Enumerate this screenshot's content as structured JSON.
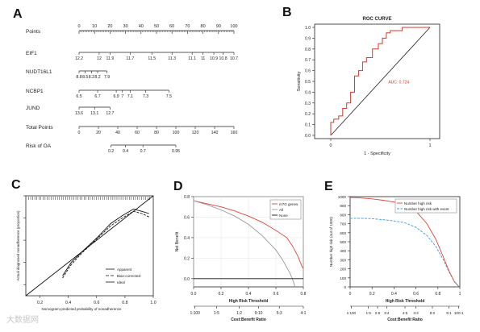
{
  "panels": {
    "A": "A",
    "B": "B",
    "C": "C",
    "D": "D",
    "E": "E"
  },
  "watermark": "大数据网",
  "colors": {
    "line": "#1a1a1a",
    "roc": "#d93a2b",
    "net_benefit_model": "#e0453a",
    "net_benefit_all": "#9a9a9a",
    "high_risk": "#e0453a",
    "high_risk_event": "#3a9ad9"
  },
  "chart_data": [
    {
      "type": "table",
      "panel": "A",
      "title": "",
      "rows": [
        {
          "label": "Points",
          "scale": [
            0,
            100
          ],
          "ticks": [
            {
              "v": 0,
              "t": "0"
            },
            {
              "v": 10,
              "t": "10"
            },
            {
              "v": 20,
              "t": "20"
            },
            {
              "v": 30,
              "t": "30"
            },
            {
              "v": 40,
              "t": "40"
            },
            {
              "v": 50,
              "t": "50"
            },
            {
              "v": 60,
              "t": "60"
            },
            {
              "v": 70,
              "t": "70"
            },
            {
              "v": 80,
              "t": "80"
            },
            {
              "v": 90,
              "t": "90"
            },
            {
              "v": 100,
              "t": "100"
            }
          ]
        },
        {
          "label": "EIF1",
          "scale": [
            0,
            100
          ],
          "ticks": [
            {
              "v": 0,
              "t": "12.2"
            },
            {
              "v": 13,
              "t": "12"
            },
            {
              "v": 20,
              "t": "11.9"
            },
            {
              "v": 33,
              "t": "11.7"
            },
            {
              "v": 47,
              "t": "11.5"
            },
            {
              "v": 60,
              "t": "11.3"
            },
            {
              "v": 73,
              "t": "11.1"
            },
            {
              "v": 80,
              "t": "11"
            },
            {
              "v": 87,
              "t": "10.9"
            },
            {
              "v": 93,
              "t": "10.8"
            },
            {
              "v": 100,
              "t": "10.7"
            }
          ]
        },
        {
          "label": "NUDT16L1",
          "scale": [
            0,
            100
          ],
          "ticks": [
            {
              "v": 0,
              "t": "8.8"
            },
            {
              "v": 4,
              "t": "8.5"
            },
            {
              "v": 8,
              "t": "8.2"
            },
            {
              "v": 12,
              "t": "8.2"
            },
            {
              "v": 18,
              "t": "7.9"
            }
          ]
        },
        {
          "label": "NCBP1",
          "scale": [
            0,
            100
          ],
          "ticks": [
            {
              "v": 0,
              "t": "6.5"
            },
            {
              "v": 12,
              "t": "6.7"
            },
            {
              "v": 24,
              "t": "6.9"
            },
            {
              "v": 28,
              "t": "7"
            },
            {
              "v": 33,
              "t": "7.1"
            },
            {
              "v": 43,
              "t": "7.3"
            },
            {
              "v": 58,
              "t": "7.5"
            }
          ]
        },
        {
          "label": "JUND",
          "scale": [
            0,
            100
          ],
          "ticks": [
            {
              "v": 0,
              "t": "13.6"
            },
            {
              "v": 10,
              "t": "13.1"
            },
            {
              "v": 20,
              "t": "12.7"
            }
          ]
        },
        {
          "label": "Total Points",
          "scale": [
            0,
            160
          ],
          "ticks": [
            {
              "v": 0,
              "t": "0"
            },
            {
              "v": 20,
              "t": "20"
            },
            {
              "v": 40,
              "t": "40"
            },
            {
              "v": 60,
              "t": "60"
            },
            {
              "v": 80,
              "t": "80"
            },
            {
              "v": 100,
              "t": "100"
            },
            {
              "v": 120,
              "t": "120"
            },
            {
              "v": 140,
              "t": "140"
            },
            {
              "v": 160,
              "t": "160"
            }
          ]
        },
        {
          "label": "Risk of OA",
          "scale": [
            0,
            160
          ],
          "ticks": [
            {
              "v": 33,
              "t": "0.2"
            },
            {
              "v": 48,
              "t": "0.4"
            },
            {
              "v": 66,
              "t": "0.7"
            },
            {
              "v": 100,
              "t": "0.95"
            }
          ]
        }
      ]
    },
    {
      "type": "line",
      "panel": "B",
      "title": "ROC CURVE",
      "xlabel": "1 - Specificity",
      "ylabel": "Sensitivity",
      "xlim": [
        0,
        1
      ],
      "ylim": [
        0,
        1
      ],
      "xticks": [
        {
          "v": 0,
          "t": "0"
        },
        {
          "v": 1,
          "t": "1"
        }
      ],
      "yticks": [
        {
          "v": 0,
          "t": "0.0"
        },
        {
          "v": 0.1,
          "t": "0.1"
        },
        {
          "v": 0.2,
          "t": "0.2"
        },
        {
          "v": 0.3,
          "t": "0.3"
        },
        {
          "v": 0.4,
          "t": "0.4"
        },
        {
          "v": 0.5,
          "t": "0.5"
        },
        {
          "v": 0.6,
          "t": "0.6"
        },
        {
          "v": 0.7,
          "t": "0.7"
        },
        {
          "v": 0.8,
          "t": "0.8"
        },
        {
          "v": 0.9,
          "t": "0.9"
        },
        {
          "v": 1.0,
          "t": "1.0"
        }
      ],
      "annotation": {
        "text": "AUC: 0.724",
        "x": 0.58,
        "y": 0.48
      },
      "reference": [
        [
          0,
          0
        ],
        [
          1,
          1
        ]
      ],
      "series": [
        {
          "values": [
            [
              0,
              0
            ],
            [
              0,
              0.12
            ],
            [
              0.03,
              0.12
            ],
            [
              0.03,
              0.15
            ],
            [
              0.08,
              0.15
            ],
            [
              0.08,
              0.18
            ],
            [
              0.12,
              0.18
            ],
            [
              0.12,
              0.25
            ],
            [
              0.16,
              0.25
            ],
            [
              0.16,
              0.3
            ],
            [
              0.2,
              0.3
            ],
            [
              0.2,
              0.4
            ],
            [
              0.24,
              0.4
            ],
            [
              0.24,
              0.55
            ],
            [
              0.28,
              0.55
            ],
            [
              0.28,
              0.6
            ],
            [
              0.32,
              0.6
            ],
            [
              0.32,
              0.68
            ],
            [
              0.36,
              0.68
            ],
            [
              0.36,
              0.72
            ],
            [
              0.42,
              0.72
            ],
            [
              0.42,
              0.8
            ],
            [
              0.48,
              0.8
            ],
            [
              0.48,
              0.85
            ],
            [
              0.52,
              0.85
            ],
            [
              0.52,
              0.9
            ],
            [
              0.56,
              0.9
            ],
            [
              0.56,
              0.95
            ],
            [
              0.6,
              0.95
            ],
            [
              0.6,
              0.97
            ],
            [
              0.72,
              0.97
            ],
            [
              0.72,
              1.0
            ],
            [
              1,
              1
            ]
          ]
        }
      ]
    },
    {
      "type": "line",
      "panel": "C",
      "title": "",
      "xlabel": "Nomogram-predicted probability of nonadherence",
      "ylabel": "Actual diagnosed nonadherence (proportion)",
      "xlim": [
        0.1,
        1.0
      ],
      "ylim": [
        0.1,
        1.0
      ],
      "xticks": [
        {
          "v": 0.2,
          "t": "0.2"
        },
        {
          "v": 0.4,
          "t": "0.4"
        },
        {
          "v": 0.6,
          "t": "0.6"
        },
        {
          "v": 0.8,
          "t": "0.8"
        },
        {
          "v": 1.0,
          "t": "1.0"
        }
      ],
      "yticks": [
        {
          "v": 0.2,
          "t": "0.2"
        },
        {
          "v": 0.4,
          "t": "0.4"
        },
        {
          "v": 0.6,
          "t": "0.6"
        },
        {
          "v": 0.8,
          "t": "0.8"
        },
        {
          "v": 1.0,
          "t": "1.0"
        }
      ],
      "legend": [
        {
          "name": "Apparent",
          "dash": "none"
        },
        {
          "name": "Bias-corrected",
          "dash": "4,2"
        },
        {
          "name": "Ideal",
          "dash": "none"
        }
      ],
      "series": [
        {
          "name": "Apparent",
          "values": [
            [
              0.36,
              0.28
            ],
            [
              0.42,
              0.4
            ],
            [
              0.5,
              0.5
            ],
            [
              0.6,
              0.62
            ],
            [
              0.7,
              0.75
            ],
            [
              0.78,
              0.82
            ],
            [
              0.86,
              0.88
            ],
            [
              0.92,
              0.86
            ],
            [
              0.97,
              0.84
            ]
          ]
        },
        {
          "name": "Bias-corrected",
          "values": [
            [
              0.36,
              0.26
            ],
            [
              0.42,
              0.38
            ],
            [
              0.5,
              0.49
            ],
            [
              0.6,
              0.61
            ],
            [
              0.7,
              0.73
            ],
            [
              0.78,
              0.8
            ],
            [
              0.86,
              0.86
            ],
            [
              0.92,
              0.84
            ],
            [
              0.97,
              0.81
            ]
          ]
        },
        {
          "name": "Ideal",
          "values": [
            [
              0.1,
              0.1
            ],
            [
              1.0,
              1.0
            ]
          ]
        }
      ]
    },
    {
      "type": "line",
      "panel": "D",
      "title": "",
      "xlabel": "High Risk Threshold",
      "ylabel": "Net Benefit",
      "x2label": "Cost:Benefit Ratio",
      "xlim": [
        0,
        0.8
      ],
      "ylim": [
        -0.08,
        0.8
      ],
      "xticks": [
        {
          "v": 0,
          "t": "0.0"
        },
        {
          "v": 0.2,
          "t": "0.2"
        },
        {
          "v": 0.4,
          "t": "0.4"
        },
        {
          "v": 0.6,
          "t": "0.6"
        },
        {
          "v": 0.8,
          "t": "0.8"
        }
      ],
      "x2ticks": [
        {
          "v": 0.01,
          "t": "1:100"
        },
        {
          "v": 0.167,
          "t": "1:5"
        },
        {
          "v": 0.333,
          "t": "1:2"
        },
        {
          "v": 0.474,
          "t": "9:10"
        },
        {
          "v": 0.625,
          "t": "5:3"
        },
        {
          "v": 0.8,
          "t": "4:1"
        }
      ],
      "yticks": [
        {
          "v": 0.0,
          "t": "0.0"
        },
        {
          "v": 0.2,
          "t": "0.2"
        },
        {
          "v": 0.4,
          "t": "0.4"
        },
        {
          "v": 0.6,
          "t": "0.6"
        },
        {
          "v": 0.8,
          "t": "0.8"
        }
      ],
      "legend": [
        {
          "name": "m7G genes"
        },
        {
          "name": "All"
        },
        {
          "name": "None"
        }
      ],
      "series": [
        {
          "name": "m7G genes",
          "values": [
            [
              0,
              0.76
            ],
            [
              0.1,
              0.73
            ],
            [
              0.2,
              0.7
            ],
            [
              0.3,
              0.66
            ],
            [
              0.4,
              0.61
            ],
            [
              0.5,
              0.55
            ],
            [
              0.6,
              0.47
            ],
            [
              0.68,
              0.4
            ],
            [
              0.72,
              0.32
            ],
            [
              0.76,
              0.22
            ],
            [
              0.79,
              0.12
            ],
            [
              0.8,
              0.1
            ]
          ]
        },
        {
          "name": "All",
          "values": [
            [
              0,
              0.76
            ],
            [
              0.1,
              0.72
            ],
            [
              0.2,
              0.67
            ],
            [
              0.3,
              0.61
            ],
            [
              0.4,
              0.53
            ],
            [
              0.5,
              0.42
            ],
            [
              0.6,
              0.28
            ],
            [
              0.65,
              0.18
            ],
            [
              0.7,
              0.06
            ],
            [
              0.72,
              0.0
            ],
            [
              0.74,
              -0.08
            ]
          ]
        },
        {
          "name": "None",
          "values": [
            [
              0,
              0
            ],
            [
              0.8,
              0
            ]
          ]
        }
      ]
    },
    {
      "type": "line",
      "panel": "E",
      "title": "",
      "xlabel": "High Risk Threshold",
      "ylabel": "Number high risk (out of 1000)",
      "x2label": "Cost:Benefit Ratio",
      "xlim": [
        0,
        1
      ],
      "ylim": [
        0,
        1000
      ],
      "xticks": [
        {
          "v": 0,
          "t": "0"
        },
        {
          "v": 0.2,
          "t": "0.2"
        },
        {
          "v": 0.4,
          "t": "0.4"
        },
        {
          "v": 0.6,
          "t": "0.6"
        },
        {
          "v": 0.8,
          "t": "0.8"
        },
        {
          "v": 1.0,
          "t": "1"
        }
      ],
      "x2ticks": [
        {
          "v": 0.01,
          "t": "1:100"
        },
        {
          "v": 0.167,
          "t": "1:5"
        },
        {
          "v": 0.25,
          "t": "2:8"
        },
        {
          "v": 0.333,
          "t": "3:4"
        },
        {
          "v": 0.5,
          "t": "4:5"
        },
        {
          "v": 0.6,
          "t": "3:2"
        },
        {
          "v": 0.75,
          "t": "8:2"
        },
        {
          "v": 0.9,
          "t": "9:1"
        },
        {
          "v": 0.99,
          "t": "100:1"
        }
      ],
      "yticks": [
        {
          "v": 0,
          "t": "0"
        },
        {
          "v": 100,
          "t": "100"
        },
        {
          "v": 200,
          "t": "200"
        },
        {
          "v": 300,
          "t": "300"
        },
        {
          "v": 400,
          "t": "400"
        },
        {
          "v": 500,
          "t": "500"
        },
        {
          "v": 600,
          "t": "600"
        },
        {
          "v": 700,
          "t": "700"
        },
        {
          "v": 800,
          "t": "800"
        },
        {
          "v": 900,
          "t": "900"
        },
        {
          "v": 1000,
          "t": "1000"
        }
      ],
      "legend": [
        {
          "name": "Number high risk"
        },
        {
          "name": "Number high risk with event"
        }
      ],
      "series": [
        {
          "name": "Number high risk",
          "values": [
            [
              0,
              990
            ],
            [
              0.1,
              985
            ],
            [
              0.2,
              975
            ],
            [
              0.3,
              960
            ],
            [
              0.4,
              940
            ],
            [
              0.5,
              905
            ],
            [
              0.6,
              840
            ],
            [
              0.7,
              700
            ],
            [
              0.78,
              530
            ],
            [
              0.85,
              330
            ],
            [
              0.9,
              180
            ],
            [
              0.95,
              60
            ],
            [
              0.99,
              5
            ]
          ]
        },
        {
          "name": "Number high risk with event",
          "values": [
            [
              0,
              760
            ],
            [
              0.1,
              760
            ],
            [
              0.2,
              755
            ],
            [
              0.3,
              745
            ],
            [
              0.4,
              730
            ],
            [
              0.5,
              710
            ],
            [
              0.6,
              660
            ],
            [
              0.7,
              570
            ],
            [
              0.78,
              450
            ],
            [
              0.85,
              300
            ],
            [
              0.9,
              170
            ],
            [
              0.95,
              55
            ],
            [
              0.99,
              5
            ]
          ]
        }
      ]
    }
  ]
}
